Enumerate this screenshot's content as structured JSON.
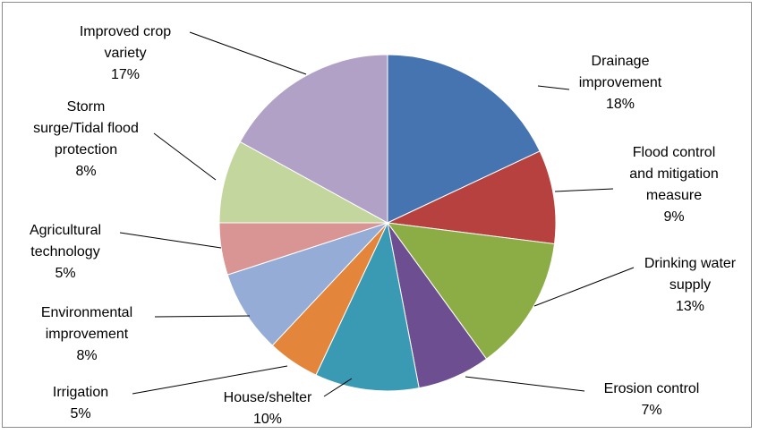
{
  "chart_data": {
    "type": "pie",
    "title": "",
    "slices": [
      {
        "label": "Drainage improvement",
        "value": 18,
        "value_label": "18%",
        "color": "#4674b1"
      },
      {
        "label": "Flood control and mitigation measure",
        "value": 9,
        "value_label": "9%",
        "color": "#b6413e"
      },
      {
        "label": "Drinking water supply",
        "value": 13,
        "value_label": "13%",
        "color": "#8cad45"
      },
      {
        "label": "Erosion control",
        "value": 7,
        "value_label": "7%",
        "color": "#6d4f91"
      },
      {
        "label": "House/shelter",
        "value": 10,
        "value_label": "10%",
        "color": "#3a9ab4"
      },
      {
        "label": "Irrigation",
        "value": 5,
        "value_label": "5%",
        "color": "#e3863c"
      },
      {
        "label": "Environmental improvement",
        "value": 8,
        "value_label": "8%",
        "color": "#94acd6"
      },
      {
        "label": "Agricultural technology",
        "value": 5,
        "value_label": "5%",
        "color": "#d99593"
      },
      {
        "label": "Storm surge/Tidal flood protection",
        "value": 8,
        "value_label": "8%",
        "color": "#c3d69d"
      },
      {
        "label": "Improved crop variety",
        "value": 17,
        "value_label": "17%",
        "color": "#b1a1c7"
      }
    ],
    "legend": "none",
    "label_style": "outside with leader lines"
  }
}
